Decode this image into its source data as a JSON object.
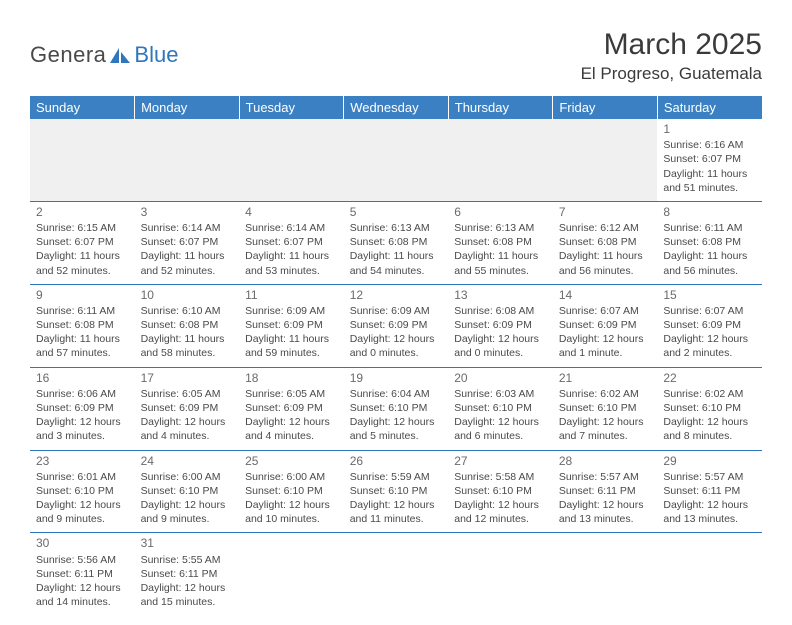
{
  "logo": {
    "text1": "Genera",
    "text2": "Blue"
  },
  "title": "March 2025",
  "location": "El Progreso, Guatemala",
  "colors": {
    "header_bg": "#3a80c3",
    "header_text": "#ffffff",
    "border": "#2f77bc",
    "empty_bg": "#f0f0f0",
    "text": "#4a4a4a",
    "logo_blue": "#2f77bc"
  },
  "weekdays": [
    "Sunday",
    "Monday",
    "Tuesday",
    "Wednesday",
    "Thursday",
    "Friday",
    "Saturday"
  ],
  "weeks": [
    [
      null,
      null,
      null,
      null,
      null,
      null,
      {
        "d": "1",
        "sr": "6:16 AM",
        "ss": "6:07 PM",
        "dl": "11 hours and 51 minutes."
      }
    ],
    [
      {
        "d": "2",
        "sr": "6:15 AM",
        "ss": "6:07 PM",
        "dl": "11 hours and 52 minutes."
      },
      {
        "d": "3",
        "sr": "6:14 AM",
        "ss": "6:07 PM",
        "dl": "11 hours and 52 minutes."
      },
      {
        "d": "4",
        "sr": "6:14 AM",
        "ss": "6:07 PM",
        "dl": "11 hours and 53 minutes."
      },
      {
        "d": "5",
        "sr": "6:13 AM",
        "ss": "6:08 PM",
        "dl": "11 hours and 54 minutes."
      },
      {
        "d": "6",
        "sr": "6:13 AM",
        "ss": "6:08 PM",
        "dl": "11 hours and 55 minutes."
      },
      {
        "d": "7",
        "sr": "6:12 AM",
        "ss": "6:08 PM",
        "dl": "11 hours and 56 minutes."
      },
      {
        "d": "8",
        "sr": "6:11 AM",
        "ss": "6:08 PM",
        "dl": "11 hours and 56 minutes."
      }
    ],
    [
      {
        "d": "9",
        "sr": "6:11 AM",
        "ss": "6:08 PM",
        "dl": "11 hours and 57 minutes."
      },
      {
        "d": "10",
        "sr": "6:10 AM",
        "ss": "6:08 PM",
        "dl": "11 hours and 58 minutes."
      },
      {
        "d": "11",
        "sr": "6:09 AM",
        "ss": "6:09 PM",
        "dl": "11 hours and 59 minutes."
      },
      {
        "d": "12",
        "sr": "6:09 AM",
        "ss": "6:09 PM",
        "dl": "12 hours and 0 minutes."
      },
      {
        "d": "13",
        "sr": "6:08 AM",
        "ss": "6:09 PM",
        "dl": "12 hours and 0 minutes."
      },
      {
        "d": "14",
        "sr": "6:07 AM",
        "ss": "6:09 PM",
        "dl": "12 hours and 1 minute."
      },
      {
        "d": "15",
        "sr": "6:07 AM",
        "ss": "6:09 PM",
        "dl": "12 hours and 2 minutes."
      }
    ],
    [
      {
        "d": "16",
        "sr": "6:06 AM",
        "ss": "6:09 PM",
        "dl": "12 hours and 3 minutes."
      },
      {
        "d": "17",
        "sr": "6:05 AM",
        "ss": "6:09 PM",
        "dl": "12 hours and 4 minutes."
      },
      {
        "d": "18",
        "sr": "6:05 AM",
        "ss": "6:09 PM",
        "dl": "12 hours and 4 minutes."
      },
      {
        "d": "19",
        "sr": "6:04 AM",
        "ss": "6:10 PM",
        "dl": "12 hours and 5 minutes."
      },
      {
        "d": "20",
        "sr": "6:03 AM",
        "ss": "6:10 PM",
        "dl": "12 hours and 6 minutes."
      },
      {
        "d": "21",
        "sr": "6:02 AM",
        "ss": "6:10 PM",
        "dl": "12 hours and 7 minutes."
      },
      {
        "d": "22",
        "sr": "6:02 AM",
        "ss": "6:10 PM",
        "dl": "12 hours and 8 minutes."
      }
    ],
    [
      {
        "d": "23",
        "sr": "6:01 AM",
        "ss": "6:10 PM",
        "dl": "12 hours and 9 minutes."
      },
      {
        "d": "24",
        "sr": "6:00 AM",
        "ss": "6:10 PM",
        "dl": "12 hours and 9 minutes."
      },
      {
        "d": "25",
        "sr": "6:00 AM",
        "ss": "6:10 PM",
        "dl": "12 hours and 10 minutes."
      },
      {
        "d": "26",
        "sr": "5:59 AM",
        "ss": "6:10 PM",
        "dl": "12 hours and 11 minutes."
      },
      {
        "d": "27",
        "sr": "5:58 AM",
        "ss": "6:10 PM",
        "dl": "12 hours and 12 minutes."
      },
      {
        "d": "28",
        "sr": "5:57 AM",
        "ss": "6:11 PM",
        "dl": "12 hours and 13 minutes."
      },
      {
        "d": "29",
        "sr": "5:57 AM",
        "ss": "6:11 PM",
        "dl": "12 hours and 13 minutes."
      }
    ],
    [
      {
        "d": "30",
        "sr": "5:56 AM",
        "ss": "6:11 PM",
        "dl": "12 hours and 14 minutes."
      },
      {
        "d": "31",
        "sr": "5:55 AM",
        "ss": "6:11 PM",
        "dl": "12 hours and 15 minutes."
      },
      null,
      null,
      null,
      null,
      null
    ]
  ],
  "labels": {
    "sunrise": "Sunrise:",
    "sunset": "Sunset:",
    "daylight": "Daylight:"
  }
}
